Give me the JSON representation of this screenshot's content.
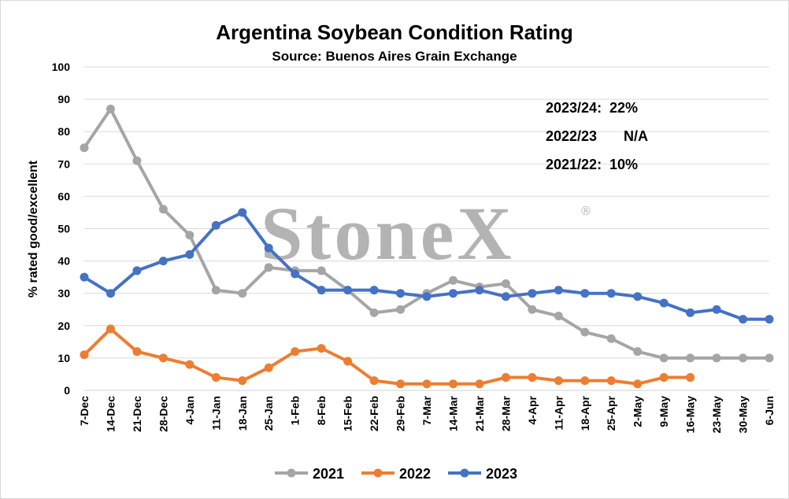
{
  "chart_data": {
    "type": "line",
    "title": "Argentina Soybean Condition Rating",
    "subtitle": "Source: Buenos Aires Grain Exchange",
    "ylabel": "% rated good/excellent",
    "xlabel": "",
    "ylim": [
      0,
      100
    ],
    "yticks": [
      0,
      10,
      20,
      30,
      40,
      50,
      60,
      70,
      80,
      90,
      100
    ],
    "grid": true,
    "legend_position": "bottom",
    "categories": [
      "7-Dec",
      "14-Dec",
      "21-Dec",
      "28-Dec",
      "4-Jan",
      "11-Jan",
      "18-Jan",
      "25-Jan",
      "1-Feb",
      "8-Feb",
      "15-Feb",
      "22-Feb",
      "29-Feb",
      "7-Mar",
      "14-Mar",
      "21-Mar",
      "28-Mar",
      "4-Apr",
      "11-Apr",
      "18-Apr",
      "25-Apr",
      "2-May",
      "9-May",
      "16-May",
      "23-May",
      "30-May",
      "6-Jun"
    ],
    "series": [
      {
        "name": "2021",
        "color": "#a5a5a5",
        "values": [
          75,
          87,
          71,
          56,
          48,
          31,
          30,
          38,
          37,
          37,
          31,
          24,
          25,
          30,
          34,
          32,
          33,
          25,
          23,
          18,
          16,
          12,
          10,
          10,
          10,
          10,
          10
        ]
      },
      {
        "name": "2022",
        "color": "#ed7d31",
        "values": [
          11,
          19,
          12,
          10,
          8,
          4,
          3,
          7,
          12,
          13,
          9,
          3,
          2,
          2,
          2,
          2,
          4,
          4,
          3,
          3,
          3,
          2,
          4,
          4,
          null,
          null,
          null
        ]
      },
      {
        "name": "2023",
        "color": "#4472c4",
        "values": [
          35,
          30,
          37,
          40,
          42,
          51,
          55,
          44,
          36,
          31,
          31,
          31,
          30,
          29,
          30,
          31,
          29,
          30,
          31,
          30,
          30,
          29,
          27,
          24,
          25,
          22,
          22
        ]
      }
    ],
    "annotations": [
      {
        "label": "2023/24:",
        "value": "22%"
      },
      {
        "label": "2022/23",
        "value": "N/A"
      },
      {
        "label": "2021/22:",
        "value": "10%"
      }
    ]
  },
  "watermark": {
    "text": "StoneX",
    "mark": "®"
  }
}
